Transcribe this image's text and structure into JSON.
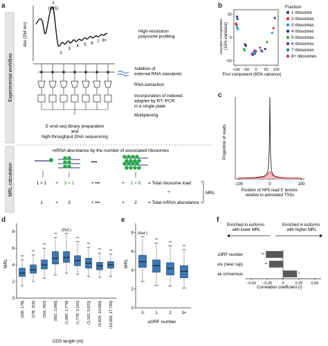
{
  "panel_letters": {
    "a": "a",
    "b": "b",
    "c": "c",
    "d": "d",
    "e": "e",
    "f": "f"
  },
  "panel_a": {
    "side_label_workflow": "Experimental workflow",
    "side_label_mrl": "MRL calculation",
    "y_axis": "Abs (254 nm)",
    "peak_1": "1",
    "peak_1_sub": "(80S)",
    "peak_labels": [
      "2",
      "3",
      "4",
      "5",
      "6",
      "7",
      "8+"
    ],
    "step_profiling": "High-resolution\npolysome profiling",
    "step_standards": "Addition of\nexternal RNA standards",
    "step_extraction": "RNA extraction",
    "step_adapter": "Incorporation of indexed\nadapter by RT–PCR\nin a single plate",
    "step_multiplex": "Multiplexing",
    "step_library": "5′-end-seq library preparation\nand\nhigh-throughput DNA sequencing",
    "mrna_header": "mRNA abundance by the number of associated ribosomes",
    "row1_terms": [
      "1 × 1",
      "+",
      "3 × 2",
      "+ •••",
      "+",
      "2 × 8"
    ],
    "row1_result": "= Total ribosome load",
    "divider": "÷",
    "row2_terms": [
      "1",
      "+",
      "3",
      "+ •••",
      "+",
      "2"
    ],
    "row2_result": "= Total mRNA abundance",
    "mrl_label": "MRL",
    "dots": "•••"
  },
  "panel_b": {
    "x_label": "First component (65% variance)",
    "y_label": "Second component\n(15% variance)",
    "legend_title": "Fraction",
    "legend": [
      {
        "label": "1 ribosome",
        "color": "#1f3d99"
      },
      {
        "label": "2 ribosomes",
        "color": "#d7262a"
      },
      {
        "label": "3 ribosomes",
        "color": "#2a9bd6"
      },
      {
        "label": "4 ribosomes",
        "color": "#2c2e82"
      },
      {
        "label": "5 ribosomes",
        "color": "#29a84a"
      },
      {
        "label": "6 ribosomes",
        "color": "#6b2c91"
      },
      {
        "label": "7 ribosomes",
        "color": "#13878e"
      },
      {
        "label": "8+ ribosomes",
        "color": "#b5318f"
      }
    ]
  },
  "panel_c": {
    "y_label": "Proportion of reads",
    "x_label": "Position of HP5 read 5′ termini\nrelative to annotated TSSs"
  },
  "panel_f": {
    "left_note": "Enriched in isoforms\nwith lower MRL",
    "right_note": "Enriched in isoforms\nwith higher MRL",
    "x_label": "Correlation coefficient (r)"
  },
  "chart_data": [
    {
      "panel": "b",
      "type": "scatter",
      "xlabel": "First component (65% variance)",
      "ylabel": "Second component (15% variance)",
      "xlim": [
        -110,
        110
      ],
      "ylim": [
        -60,
        60
      ],
      "x_ticks": [
        "−100",
        "−50",
        "0",
        "50",
        "100"
      ],
      "y_ticks": [
        "50",
        "0",
        "−50"
      ],
      "series": [
        {
          "name": "1 ribosome",
          "color": "#1f3d99",
          "points": [
            [
              -95,
              45
            ],
            [
              -92,
              40
            ],
            [
              93,
              42
            ]
          ]
        },
        {
          "name": "2 ribosomes",
          "color": "#d7262a",
          "points": [
            [
              -100,
              30
            ],
            [
              -97,
              27
            ],
            [
              87,
              20
            ]
          ]
        },
        {
          "name": "3 ribosomes",
          "color": "#2a9bd6",
          "points": [
            [
              -94,
              22
            ],
            [
              -90,
              18
            ],
            [
              80,
              10
            ]
          ]
        },
        {
          "name": "4 ribosomes",
          "color": "#2c2e82",
          "points": [
            [
              -55,
              -15
            ],
            [
              -50,
              -18
            ],
            [
              45,
              -25
            ]
          ]
        },
        {
          "name": "5 ribosomes",
          "color": "#29a84a",
          "points": [
            [
              -60,
              -25
            ],
            [
              -56,
              -28
            ],
            [
              55,
              -10
            ]
          ]
        },
        {
          "name": "6 ribosomes",
          "color": "#6b2c91",
          "points": [
            [
              -20,
              -35
            ],
            [
              -15,
              -38
            ],
            [
              30,
              -30
            ]
          ]
        },
        {
          "name": "7 ribosomes",
          "color": "#13878e",
          "points": [
            [
              -10,
              -32
            ],
            [
              -5,
              -35
            ],
            [
              25,
              -28
            ]
          ]
        },
        {
          "name": "8+ ribosomes",
          "color": "#b5318f",
          "points": [
            [
              -8,
              -28
            ],
            [
              0,
              -30
            ],
            [
              20,
              -22
            ]
          ]
        }
      ]
    },
    {
      "panel": "c",
      "type": "line",
      "ylabel": "Proportion of reads",
      "xlabel": "Position of HP5 read 5′ termini relative to annotated TSSs",
      "xlim": [
        -110,
        110
      ],
      "x_ticks": [
        "−100",
        "0",
        "100"
      ],
      "series": [
        {
          "name": "",
          "color": "#222222",
          "x": [
            -100,
            -50,
            -20,
            -10,
            -5,
            -2,
            0,
            2,
            5,
            10,
            20,
            50,
            100
          ],
          "values": [
            0.01,
            0.015,
            0.03,
            0.06,
            0.12,
            0.35,
            1.0,
            0.3,
            0.1,
            0.05,
            0.025,
            0.012,
            0.008
          ]
        },
        {
          "name": "",
          "color": "#d7262a",
          "x": [
            -100,
            -50,
            -20,
            -10,
            -5,
            0,
            5,
            10,
            20,
            50,
            100
          ],
          "values": [
            0.01,
            0.012,
            0.02,
            0.04,
            0.07,
            0.09,
            0.07,
            0.04,
            0.02,
            0.012,
            0.01
          ]
        }
      ]
    },
    {
      "panel": "d",
      "type": "bar",
      "ylabel": "MRL",
      "xlabel": "CDS length (nt)",
      "ylim": [
        0,
        9
      ],
      "y_ticks": [
        "0",
        "2",
        "4",
        "6",
        "8"
      ],
      "categories": [
        "(100, 178]",
        "(178, 316]",
        "(316, 562]",
        "(562, 1,000]",
        "(1,000, 1,778]",
        "(1,778, 3,162]",
        "(3,162, 5,623]",
        "(5,623, 10,000]",
        "(10,000, 17,783]"
      ],
      "annotations": [
        "**",
        "**",
        "**",
        "**",
        "(Ref.)",
        "**",
        "**",
        "**",
        "**"
      ],
      "boxes": [
        {
          "whisker_low": 1.5,
          "q1": 2.6,
          "median": 3.0,
          "q3": 3.6,
          "whisker_high": 4.6
        },
        {
          "whisker_low": 2.0,
          "q1": 3.0,
          "median": 3.4,
          "q3": 4.0,
          "whisker_high": 5.2
        },
        {
          "whisker_low": 2.4,
          "q1": 3.5,
          "median": 4.0,
          "q3": 4.6,
          "whisker_high": 6.0
        },
        {
          "whisker_low": 2.8,
          "q1": 4.1,
          "median": 4.8,
          "q3": 5.6,
          "whisker_high": 7.3
        },
        {
          "whisker_low": 3.0,
          "q1": 4.3,
          "median": 4.9,
          "q3": 5.6,
          "whisker_high": 7.8
        },
        {
          "whisker_low": 2.9,
          "q1": 3.9,
          "median": 4.5,
          "q3": 5.1,
          "whisker_high": 6.8
        },
        {
          "whisker_low": 2.6,
          "q1": 3.6,
          "median": 4.2,
          "q3": 4.8,
          "whisker_high": 6.1
        },
        {
          "whisker_low": 2.5,
          "q1": 3.4,
          "median": 3.9,
          "q3": 4.3,
          "whisker_high": 5.4
        },
        {
          "whisker_low": 2.6,
          "q1": 3.6,
          "median": 4.0,
          "q3": 4.4,
          "whisker_high": 5.3
        }
      ]
    },
    {
      "panel": "e",
      "type": "bar",
      "ylabel": "MRL",
      "xlabel": "uORF number",
      "ylim": [
        0,
        9
      ],
      "y_ticks": [
        "0",
        "2",
        "4",
        "6",
        "8"
      ],
      "categories": [
        "0",
        "1",
        "2",
        "3+"
      ],
      "annotations": [
        "(Ref.)",
        "**",
        "**",
        "**"
      ],
      "boxes": [
        {
          "whisker_low": 2.8,
          "q1": 4.3,
          "median": 4.9,
          "q3": 5.6,
          "whisker_high": 7.6
        },
        {
          "whisker_low": 2.4,
          "q1": 3.8,
          "median": 4.5,
          "q3": 5.1,
          "whisker_high": 6.9
        },
        {
          "whisker_low": 2.3,
          "q1": 3.5,
          "median": 4.2,
          "q3": 4.8,
          "whisker_high": 6.6
        },
        {
          "whisker_low": 2.1,
          "q1": 3.2,
          "median": 3.9,
          "q3": 4.5,
          "whisker_high": 6.2
        }
      ]
    },
    {
      "panel": "f",
      "type": "bar",
      "orientation": "horizontal",
      "xlabel": "Correlation coefficient (r)",
      "xlim": [
        -0.6,
        0.6
      ],
      "x_ticks": [
        "−0.50",
        "−0.25",
        "0",
        "0.25",
        "0.50"
      ],
      "categories": [
        "uORF number",
        "RNA structure (near cap)",
        "Kozak consensus"
      ],
      "values": [
        -0.27,
        -0.22,
        0.22
      ],
      "annotations": [
        "**",
        "**",
        "*"
      ]
    }
  ]
}
